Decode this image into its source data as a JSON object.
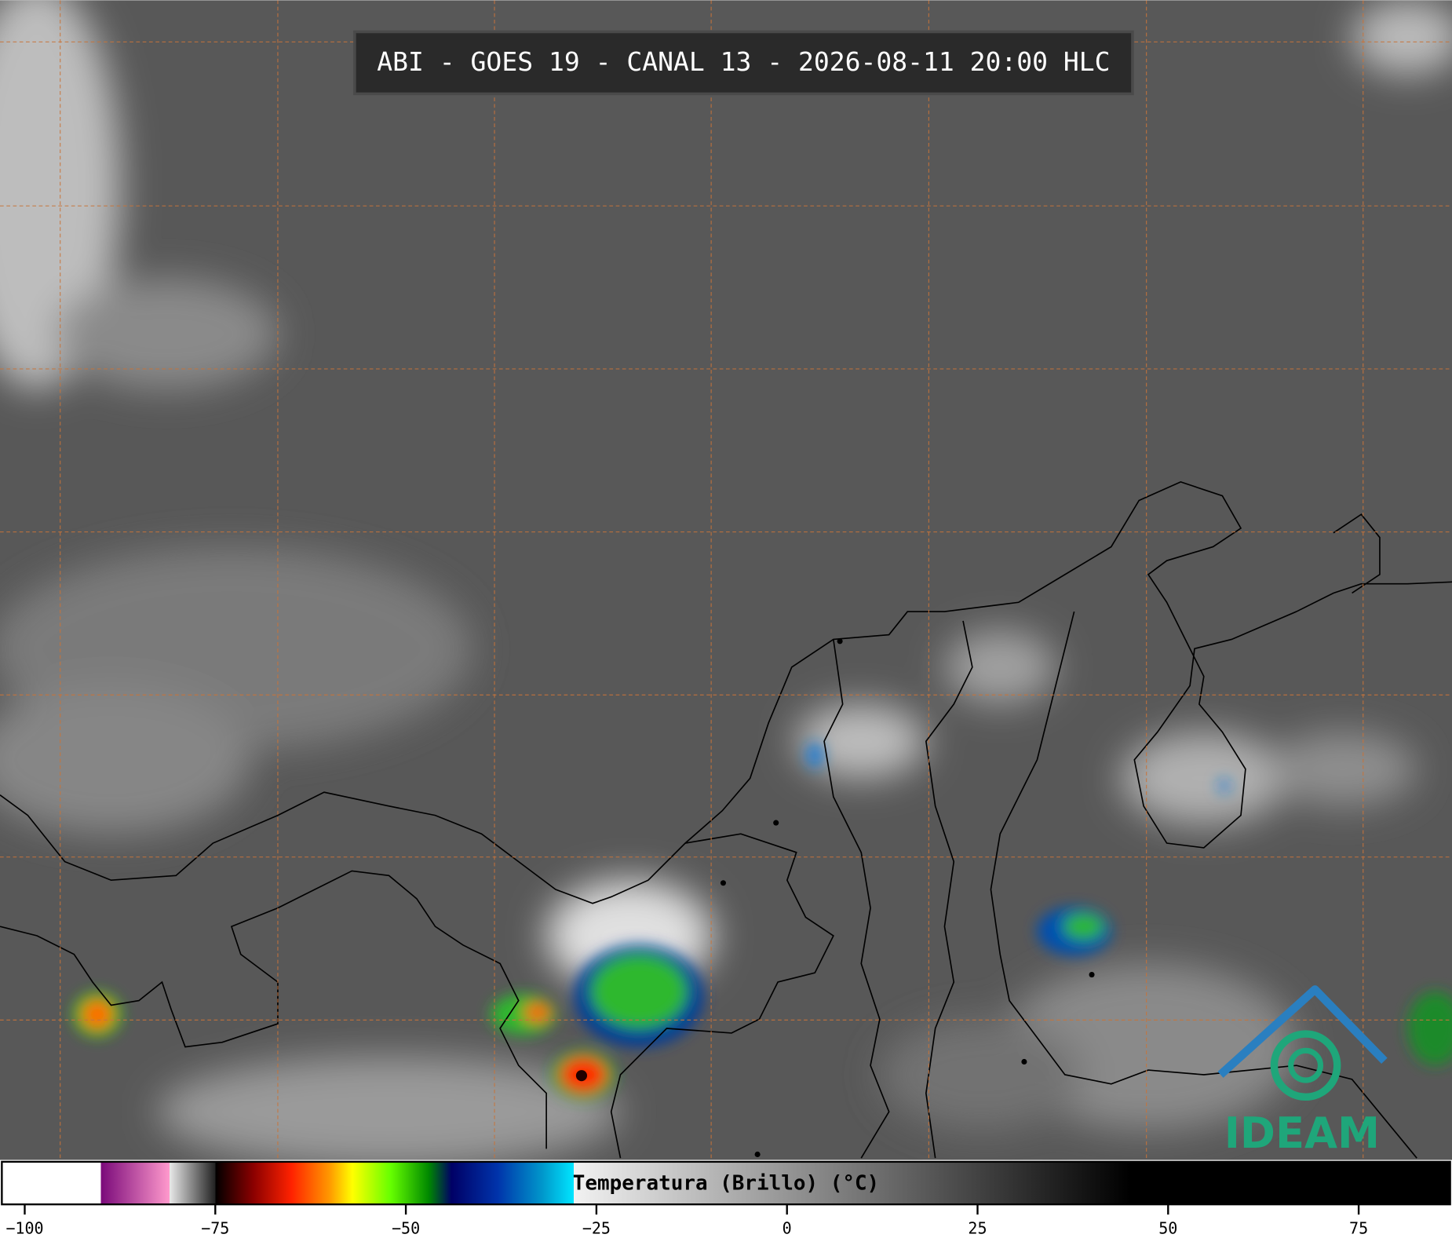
{
  "header": {
    "title": "ABI - GOES 19 - CANAL 13 - 2026-08-11 20:00 HLC"
  },
  "logo": {
    "text": "IDEAM"
  },
  "colorbar": {
    "label": "Temperatura (Brillo) (°C)",
    "lim": [
      -103,
      87
    ],
    "ticks": [
      {
        "value": -100,
        "label": "−100"
      },
      {
        "value": -75,
        "label": "−75"
      },
      {
        "value": -50,
        "label": "−50"
      },
      {
        "value": -25,
        "label": "−25"
      },
      0,
      25,
      50,
      75
    ],
    "colormap": [
      {
        "value": -103,
        "color": "#ffffff"
      },
      {
        "value": -90,
        "color": "#ffffff"
      },
      {
        "value": -90,
        "color": "#7a0a7a"
      },
      {
        "value": -81,
        "color": "#ff99cc"
      },
      {
        "value": -81,
        "color": "#e8e8e8"
      },
      {
        "value": -75,
        "color": "#222222"
      },
      {
        "value": -75,
        "color": "#000000"
      },
      {
        "value": -70,
        "color": "#8b0000"
      },
      {
        "value": -65,
        "color": "#ff2200"
      },
      {
        "value": -60,
        "color": "#ff9900"
      },
      {
        "value": -57,
        "color": "#ffff00"
      },
      {
        "value": -52,
        "color": "#66ff00"
      },
      {
        "value": -47,
        "color": "#008800"
      },
      {
        "value": -44,
        "color": "#000066"
      },
      {
        "value": -38,
        "color": "#0033aa"
      },
      {
        "value": -32,
        "color": "#0099cc"
      },
      {
        "value": -28,
        "color": "#00e5ff"
      },
      {
        "value": -28,
        "color": "#f2f2f2"
      },
      {
        "value": 45,
        "color": "#000000"
      },
      {
        "value": 87,
        "color": "#000000"
      }
    ]
  }
}
